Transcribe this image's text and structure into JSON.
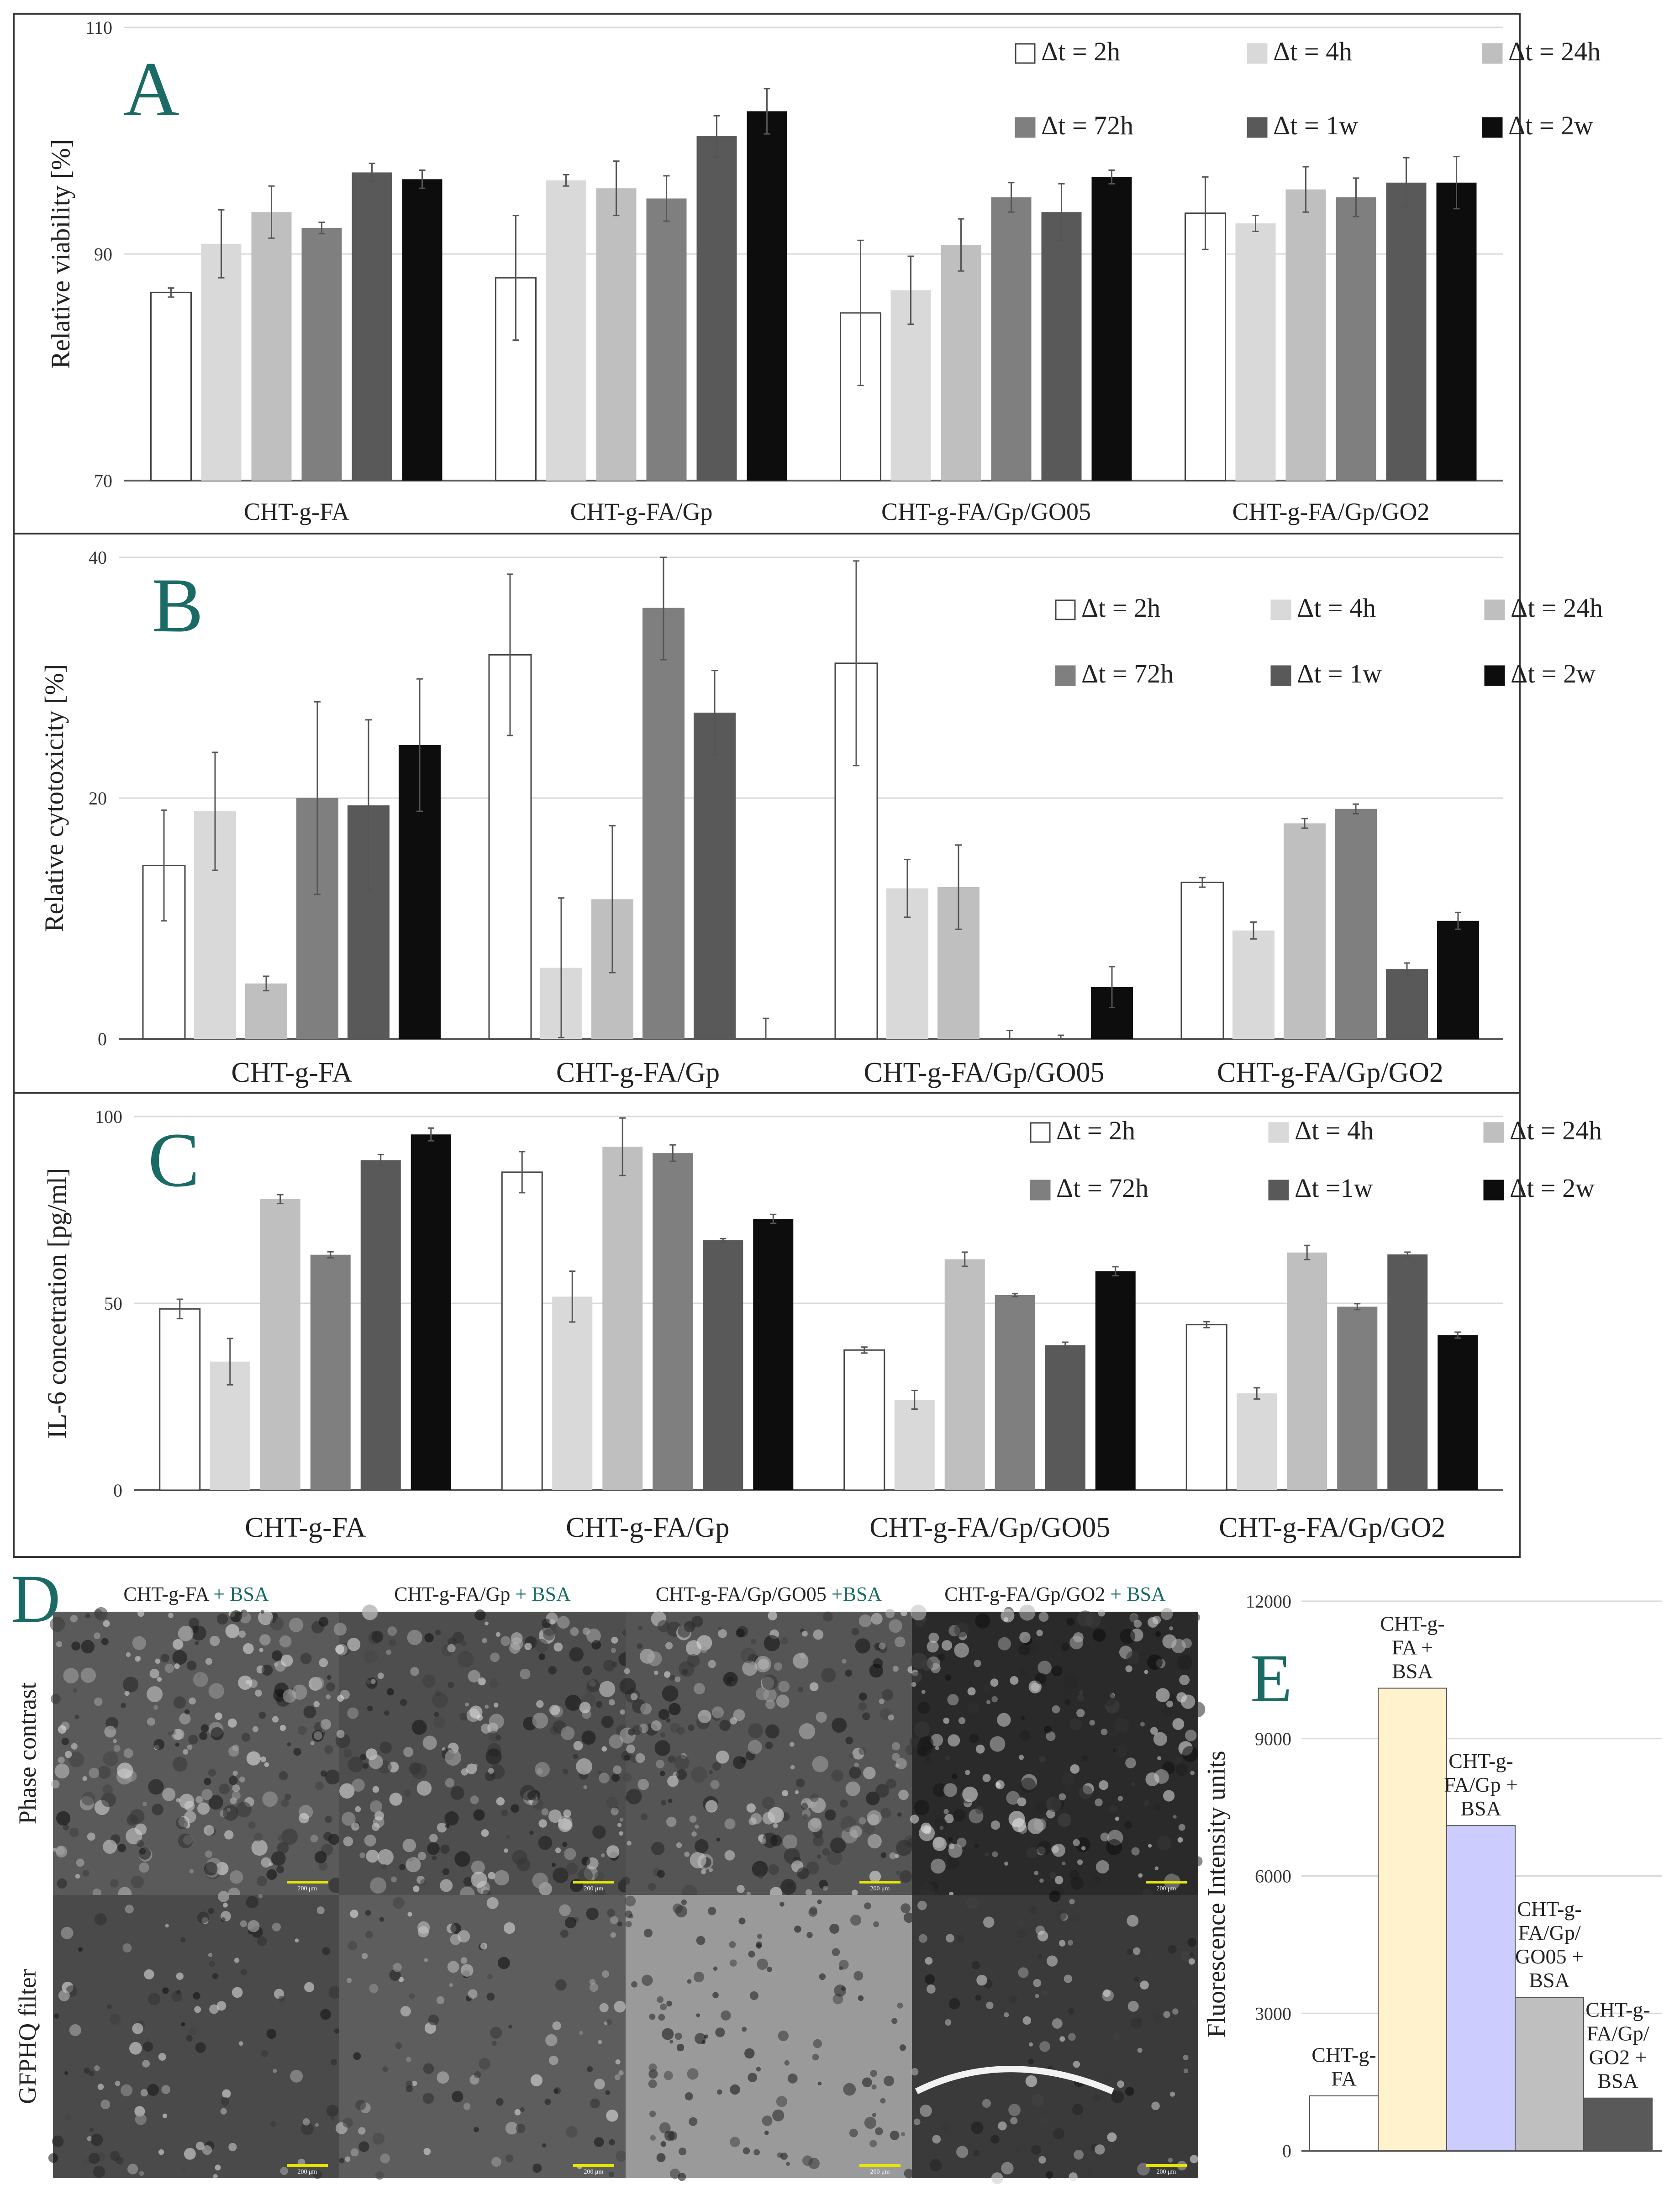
{
  "colors": {
    "2h": "#ffffff",
    "4h": "#d9d9d9",
    "24h": "#bfbfbf",
    "72h": "#7f7f7f",
    "1w": "#595959",
    "2w": "#0d0d0d",
    "panel_letter": "#1a6b66",
    "bsa_text": "#1a6b66",
    "e_bars": [
      "#ffffff",
      "#fff2cc",
      "#ccccff",
      "#bfbfbf",
      "#595959"
    ]
  },
  "chart_data": [
    {
      "type": "bar",
      "panel_label": "A",
      "ylabel": "Relative  viability [%]",
      "ylim": [
        70,
        110
      ],
      "yticks": [
        "70",
        "90",
        "110"
      ],
      "ytick_values": [
        70,
        90,
        110
      ],
      "grid": true,
      "legend_position": "top-right",
      "categories": [
        "CHT-g-FA",
        "CHT-g-FA/Gp",
        "CHT-g-FA/Gp/GO05",
        "CHT-g-FA/Gp/GO2"
      ],
      "series": [
        {
          "name": "Δt = 2h",
          "key": "2h",
          "values": [
            86.6,
            87.9,
            84.8,
            93.6
          ],
          "errors": [
            0.4,
            5.5,
            6.4,
            3.2
          ]
        },
        {
          "name": "Δt = 4h",
          "key": "4h",
          "values": [
            90.9,
            96.5,
            86.8,
            92.7
          ],
          "errors": [
            3.0,
            0.5,
            3.0,
            0.7
          ]
        },
        {
          "name": "Δt = 24h",
          "key": "24h",
          "values": [
            93.7,
            95.8,
            90.8,
            95.7
          ],
          "errors": [
            2.3,
            2.4,
            2.3,
            2.0
          ]
        },
        {
          "name": "Δt = 72h",
          "key": "72h",
          "values": [
            92.3,
            94.9,
            95.0,
            95.0
          ],
          "errors": [
            0.5,
            2.0,
            1.3,
            1.7
          ]
        },
        {
          "name": "Δt = 1w",
          "key": "1w",
          "values": [
            97.2,
            100.4,
            93.7,
            96.3
          ],
          "errors": [
            0.8,
            1.8,
            2.5,
            2.2
          ]
        },
        {
          "name": "Δt = 2w",
          "key": "2w",
          "values": [
            96.6,
            102.6,
            96.8,
            96.3
          ],
          "errors": [
            0.8,
            2.0,
            0.6,
            2.3
          ]
        }
      ]
    },
    {
      "type": "bar",
      "panel_label": "B",
      "ylabel": "Relative cytotoxicity [%]",
      "ylim": [
        0,
        40
      ],
      "yticks": [
        "0",
        "20",
        "40"
      ],
      "ytick_values": [
        0,
        20,
        40
      ],
      "grid": true,
      "legend_position": "top-right",
      "categories": [
        "CHT-g-FA",
        "CHT-g-FA/Gp",
        "CHT-g-FA/Gp/GO05",
        "CHT-g-FA/Gp/GO2"
      ],
      "series": [
        {
          "name": "Δt = 2h",
          "key": "2h",
          "values": [
            14.4,
            31.9,
            31.2,
            13.0
          ],
          "errors": [
            4.6,
            6.7,
            8.5,
            0.4
          ]
        },
        {
          "name": "Δt = 4h",
          "key": "4h",
          "values": [
            18.9,
            5.9,
            12.5,
            9.0
          ],
          "errors": [
            4.9,
            5.8,
            2.4,
            0.7
          ]
        },
        {
          "name": "Δt = 24h",
          "key": "24h",
          "values": [
            4.6,
            11.6,
            12.6,
            17.9
          ],
          "errors": [
            0.6,
            6.1,
            3.5,
            0.4
          ]
        },
        {
          "name": "Δt = 72h",
          "key": "72h",
          "values": [
            20.0,
            35.8,
            0,
            19.1
          ],
          "errors": [
            8.0,
            4.3,
            0.7,
            0.4
          ]
        },
        {
          "name": "Δt = 1w",
          "key": "1w",
          "values": [
            19.4,
            27.1,
            0,
            5.8
          ],
          "errors": [
            7.1,
            3.5,
            0.3,
            0.5
          ]
        },
        {
          "name": "Δt = 2w",
          "key": "2w",
          "values": [
            24.4,
            0,
            4.3,
            9.8
          ],
          "errors": [
            5.5,
            1.7,
            1.7,
            0.7
          ]
        }
      ]
    },
    {
      "type": "bar",
      "panel_label": "C",
      "ylabel": "IL-6 concetration [pg/ml]",
      "ylim": [
        0,
        100
      ],
      "yticks": [
        "0",
        "50",
        "100"
      ],
      "ytick_values": [
        0,
        50,
        100
      ],
      "grid": true,
      "legend_position": "top-right",
      "categories": [
        "CHT-g-FA",
        "CHT-g-FA/Gp",
        "CHT-g-FA/Gp/GO05",
        "CHT-g-FA/Gp/GO2"
      ],
      "series": [
        {
          "name": "Δt = 2h",
          "key": "2h",
          "values": [
            48.5,
            85.1,
            37.5,
            44.3
          ],
          "errors": [
            2.6,
            5.5,
            0.8,
            0.8
          ]
        },
        {
          "name": "Δt = 4h",
          "key": "4h",
          "values": [
            34.4,
            51.8,
            24.2,
            25.9
          ],
          "errors": [
            6.2,
            6.8,
            2.5,
            1.5
          ]
        },
        {
          "name": "Δt = 24h",
          "key": "24h",
          "values": [
            77.9,
            91.9,
            61.8,
            63.6
          ],
          "errors": [
            1.2,
            7.7,
            1.9,
            1.9
          ]
        },
        {
          "name": "Δt = 72h",
          "key": "72h",
          "values": [
            63.0,
            90.2,
            52.2,
            49.1
          ],
          "errors": [
            0.8,
            2.2,
            0.4,
            0.8
          ]
        },
        {
          "name": "Δt =1w",
          "key": "1w",
          "values": [
            88.3,
            66.9,
            38.8,
            63.1
          ],
          "errors": [
            1.5,
            0.4,
            0.8,
            0.6
          ]
        },
        {
          "name": "Δt = 2w",
          "key": "2w",
          "values": [
            95.2,
            72.6,
            58.6,
            41.5
          ],
          "errors": [
            1.7,
            1.2,
            1.2,
            0.8
          ]
        }
      ]
    },
    {
      "type": "bar",
      "panel_label": "E",
      "ylabel": "Fluorescence Intensity units",
      "ylim": [
        0,
        12000
      ],
      "yticks": [
        "0",
        "3000",
        "6000",
        "9000",
        "12000"
      ],
      "ytick_values": [
        0,
        3000,
        6000,
        9000,
        12000
      ],
      "grid": true,
      "categories": [
        "CHT-g-FA",
        "CHT-g-FA + BSA",
        "CHT-g-FA/Gp + BSA",
        "CHT-g-FA/Gp/GO05 + BSA",
        "CHT-g-FA/Gp/GO2 + BSA"
      ],
      "bar_label_lines": [
        [
          "CHT-g-",
          "FA"
        ],
        [
          "CHT-g-",
          "FA +",
          "BSA"
        ],
        [
          "CHT-g-",
          "FA/Gp +",
          "BSA"
        ],
        [
          "CHT-g-",
          "FA/Gp/",
          "GO05 +",
          "BSA"
        ],
        [
          "CHT-g-",
          "FA/Gp/",
          "GO2 +",
          "BSA"
        ]
      ],
      "values": [
        1200,
        10100,
        7100,
        3350,
        1150
      ]
    }
  ],
  "micrographs": {
    "panel_label": "D",
    "columns": [
      {
        "name": "CHT-g-FA",
        "suffix": " + BSA"
      },
      {
        "name": "CHT-g-FA/Gp",
        "suffix": " + BSA"
      },
      {
        "name": "CHT-g-FA/Gp/GO05",
        "suffix": " +BSA"
      },
      {
        "name": "CHT-g-FA/Gp/GO2",
        "suffix": " + BSA"
      }
    ],
    "rows": [
      "Phase contrast",
      "GFPHQ filter"
    ],
    "scale_bar_label": "200 μm"
  }
}
